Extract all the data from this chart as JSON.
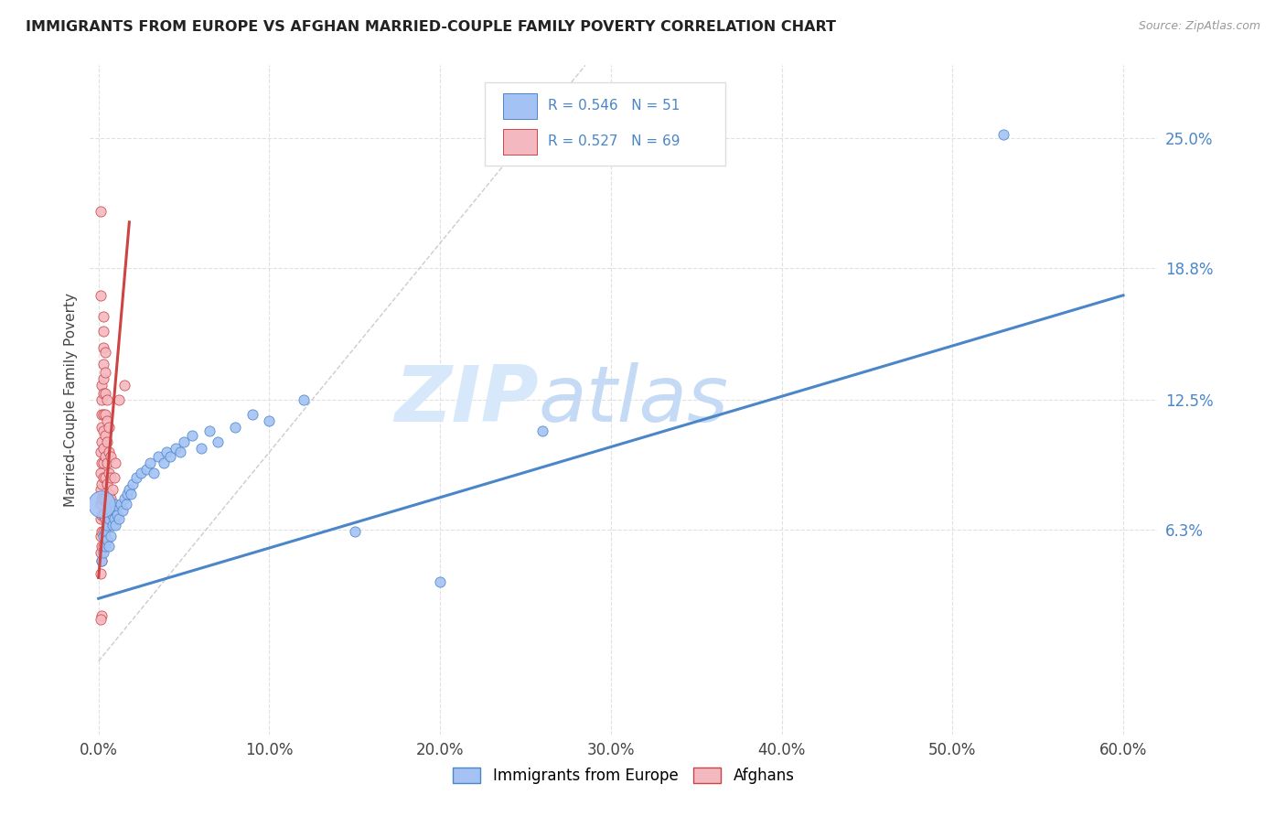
{
  "title": "IMMIGRANTS FROM EUROPE VS AFGHAN MARRIED-COUPLE FAMILY POVERTY CORRELATION CHART",
  "source": "Source: ZipAtlas.com",
  "ylabel": "Married-Couple Family Poverty",
  "x_tick_labels": [
    "0.0%",
    "10.0%",
    "20.0%",
    "30.0%",
    "40.0%",
    "50.0%",
    "60.0%"
  ],
  "x_tick_values": [
    0.0,
    0.1,
    0.2,
    0.3,
    0.4,
    0.5,
    0.6
  ],
  "y_tick_labels": [
    "6.3%",
    "12.5%",
    "18.8%",
    "25.0%"
  ],
  "y_tick_values": [
    0.063,
    0.125,
    0.188,
    0.25
  ],
  "xlim": [
    -0.005,
    0.62
  ],
  "ylim": [
    -0.035,
    0.285
  ],
  "legend_R_blue": "R = 0.546",
  "legend_N_blue": "N = 51",
  "legend_R_pink": "R = 0.527",
  "legend_N_pink": "N = 69",
  "blue_color": "#a4c2f4",
  "pink_color": "#f4b8c1",
  "blue_line_color": "#4a86c8",
  "pink_line_color": "#cc4444",
  "dashed_line_color": "#cccccc",
  "watermark_color": "#d6e8f9",
  "background_color": "#ffffff",
  "grid_color": "#e0e0e0",
  "title_color": "#222222",
  "source_color": "#999999",
  "blue_scatter": [
    [
      0.002,
      0.048
    ],
    [
      0.003,
      0.052
    ],
    [
      0.003,
      0.06
    ],
    [
      0.004,
      0.055
    ],
    [
      0.004,
      0.062
    ],
    [
      0.005,
      0.058
    ],
    [
      0.005,
      0.065
    ],
    [
      0.006,
      0.055
    ],
    [
      0.006,
      0.068
    ],
    [
      0.007,
      0.06
    ],
    [
      0.007,
      0.072
    ],
    [
      0.008,
      0.065
    ],
    [
      0.008,
      0.07
    ],
    [
      0.009,
      0.068
    ],
    [
      0.009,
      0.075
    ],
    [
      0.01,
      0.065
    ],
    [
      0.01,
      0.072
    ],
    [
      0.011,
      0.07
    ],
    [
      0.012,
      0.068
    ],
    [
      0.013,
      0.075
    ],
    [
      0.014,
      0.072
    ],
    [
      0.015,
      0.078
    ],
    [
      0.016,
      0.075
    ],
    [
      0.017,
      0.08
    ],
    [
      0.018,
      0.082
    ],
    [
      0.019,
      0.08
    ],
    [
      0.02,
      0.085
    ],
    [
      0.022,
      0.088
    ],
    [
      0.025,
      0.09
    ],
    [
      0.028,
      0.092
    ],
    [
      0.03,
      0.095
    ],
    [
      0.032,
      0.09
    ],
    [
      0.035,
      0.098
    ],
    [
      0.038,
      0.095
    ],
    [
      0.04,
      0.1
    ],
    [
      0.042,
      0.098
    ],
    [
      0.045,
      0.102
    ],
    [
      0.048,
      0.1
    ],
    [
      0.05,
      0.105
    ],
    [
      0.055,
      0.108
    ],
    [
      0.06,
      0.102
    ],
    [
      0.065,
      0.11
    ],
    [
      0.07,
      0.105
    ],
    [
      0.08,
      0.112
    ],
    [
      0.09,
      0.118
    ],
    [
      0.1,
      0.115
    ],
    [
      0.12,
      0.125
    ],
    [
      0.15,
      0.062
    ],
    [
      0.2,
      0.038
    ],
    [
      0.26,
      0.11
    ],
    [
      0.53,
      0.252
    ]
  ],
  "blue_large_point": [
    0.002,
    0.075
  ],
  "blue_large_size": 450,
  "pink_scatter": [
    [
      0.001,
      0.042
    ],
    [
      0.001,
      0.052
    ],
    [
      0.001,
      0.06
    ],
    [
      0.001,
      0.068
    ],
    [
      0.001,
      0.075
    ],
    [
      0.001,
      0.082
    ],
    [
      0.001,
      0.09
    ],
    [
      0.001,
      0.1
    ],
    [
      0.002,
      0.048
    ],
    [
      0.002,
      0.055
    ],
    [
      0.002,
      0.062
    ],
    [
      0.002,
      0.07
    ],
    [
      0.002,
      0.078
    ],
    [
      0.002,
      0.085
    ],
    [
      0.002,
      0.095
    ],
    [
      0.002,
      0.105
    ],
    [
      0.002,
      0.112
    ],
    [
      0.002,
      0.118
    ],
    [
      0.002,
      0.125
    ],
    [
      0.002,
      0.132
    ],
    [
      0.003,
      0.055
    ],
    [
      0.003,
      0.062
    ],
    [
      0.003,
      0.07
    ],
    [
      0.003,
      0.078
    ],
    [
      0.003,
      0.088
    ],
    [
      0.003,
      0.095
    ],
    [
      0.003,
      0.102
    ],
    [
      0.003,
      0.11
    ],
    [
      0.003,
      0.118
    ],
    [
      0.003,
      0.128
    ],
    [
      0.003,
      0.135
    ],
    [
      0.003,
      0.142
    ],
    [
      0.003,
      0.15
    ],
    [
      0.003,
      0.158
    ],
    [
      0.003,
      0.165
    ],
    [
      0.004,
      0.06
    ],
    [
      0.004,
      0.068
    ],
    [
      0.004,
      0.078
    ],
    [
      0.004,
      0.088
    ],
    [
      0.004,
      0.098
    ],
    [
      0.004,
      0.108
    ],
    [
      0.004,
      0.118
    ],
    [
      0.004,
      0.128
    ],
    [
      0.004,
      0.138
    ],
    [
      0.004,
      0.148
    ],
    [
      0.005,
      0.065
    ],
    [
      0.005,
      0.075
    ],
    [
      0.005,
      0.085
    ],
    [
      0.005,
      0.095
    ],
    [
      0.005,
      0.105
    ],
    [
      0.005,
      0.115
    ],
    [
      0.005,
      0.125
    ],
    [
      0.006,
      0.07
    ],
    [
      0.006,
      0.08
    ],
    [
      0.006,
      0.09
    ],
    [
      0.006,
      0.1
    ],
    [
      0.006,
      0.112
    ],
    [
      0.007,
      0.078
    ],
    [
      0.007,
      0.088
    ],
    [
      0.007,
      0.098
    ],
    [
      0.008,
      0.082
    ],
    [
      0.009,
      0.088
    ],
    [
      0.01,
      0.095
    ],
    [
      0.012,
      0.125
    ],
    [
      0.015,
      0.132
    ],
    [
      0.001,
      0.215
    ],
    [
      0.001,
      0.175
    ],
    [
      0.002,
      0.022
    ],
    [
      0.001,
      0.02
    ]
  ],
  "blue_line_x": [
    0.0,
    0.6
  ],
  "blue_line_y": [
    0.03,
    0.175
  ],
  "pink_line_x": [
    0.0,
    0.018
  ],
  "pink_line_y": [
    0.04,
    0.21
  ],
  "dash_line_x": [
    0.0,
    0.285
  ],
  "dash_line_y": [
    0.0,
    0.285
  ]
}
